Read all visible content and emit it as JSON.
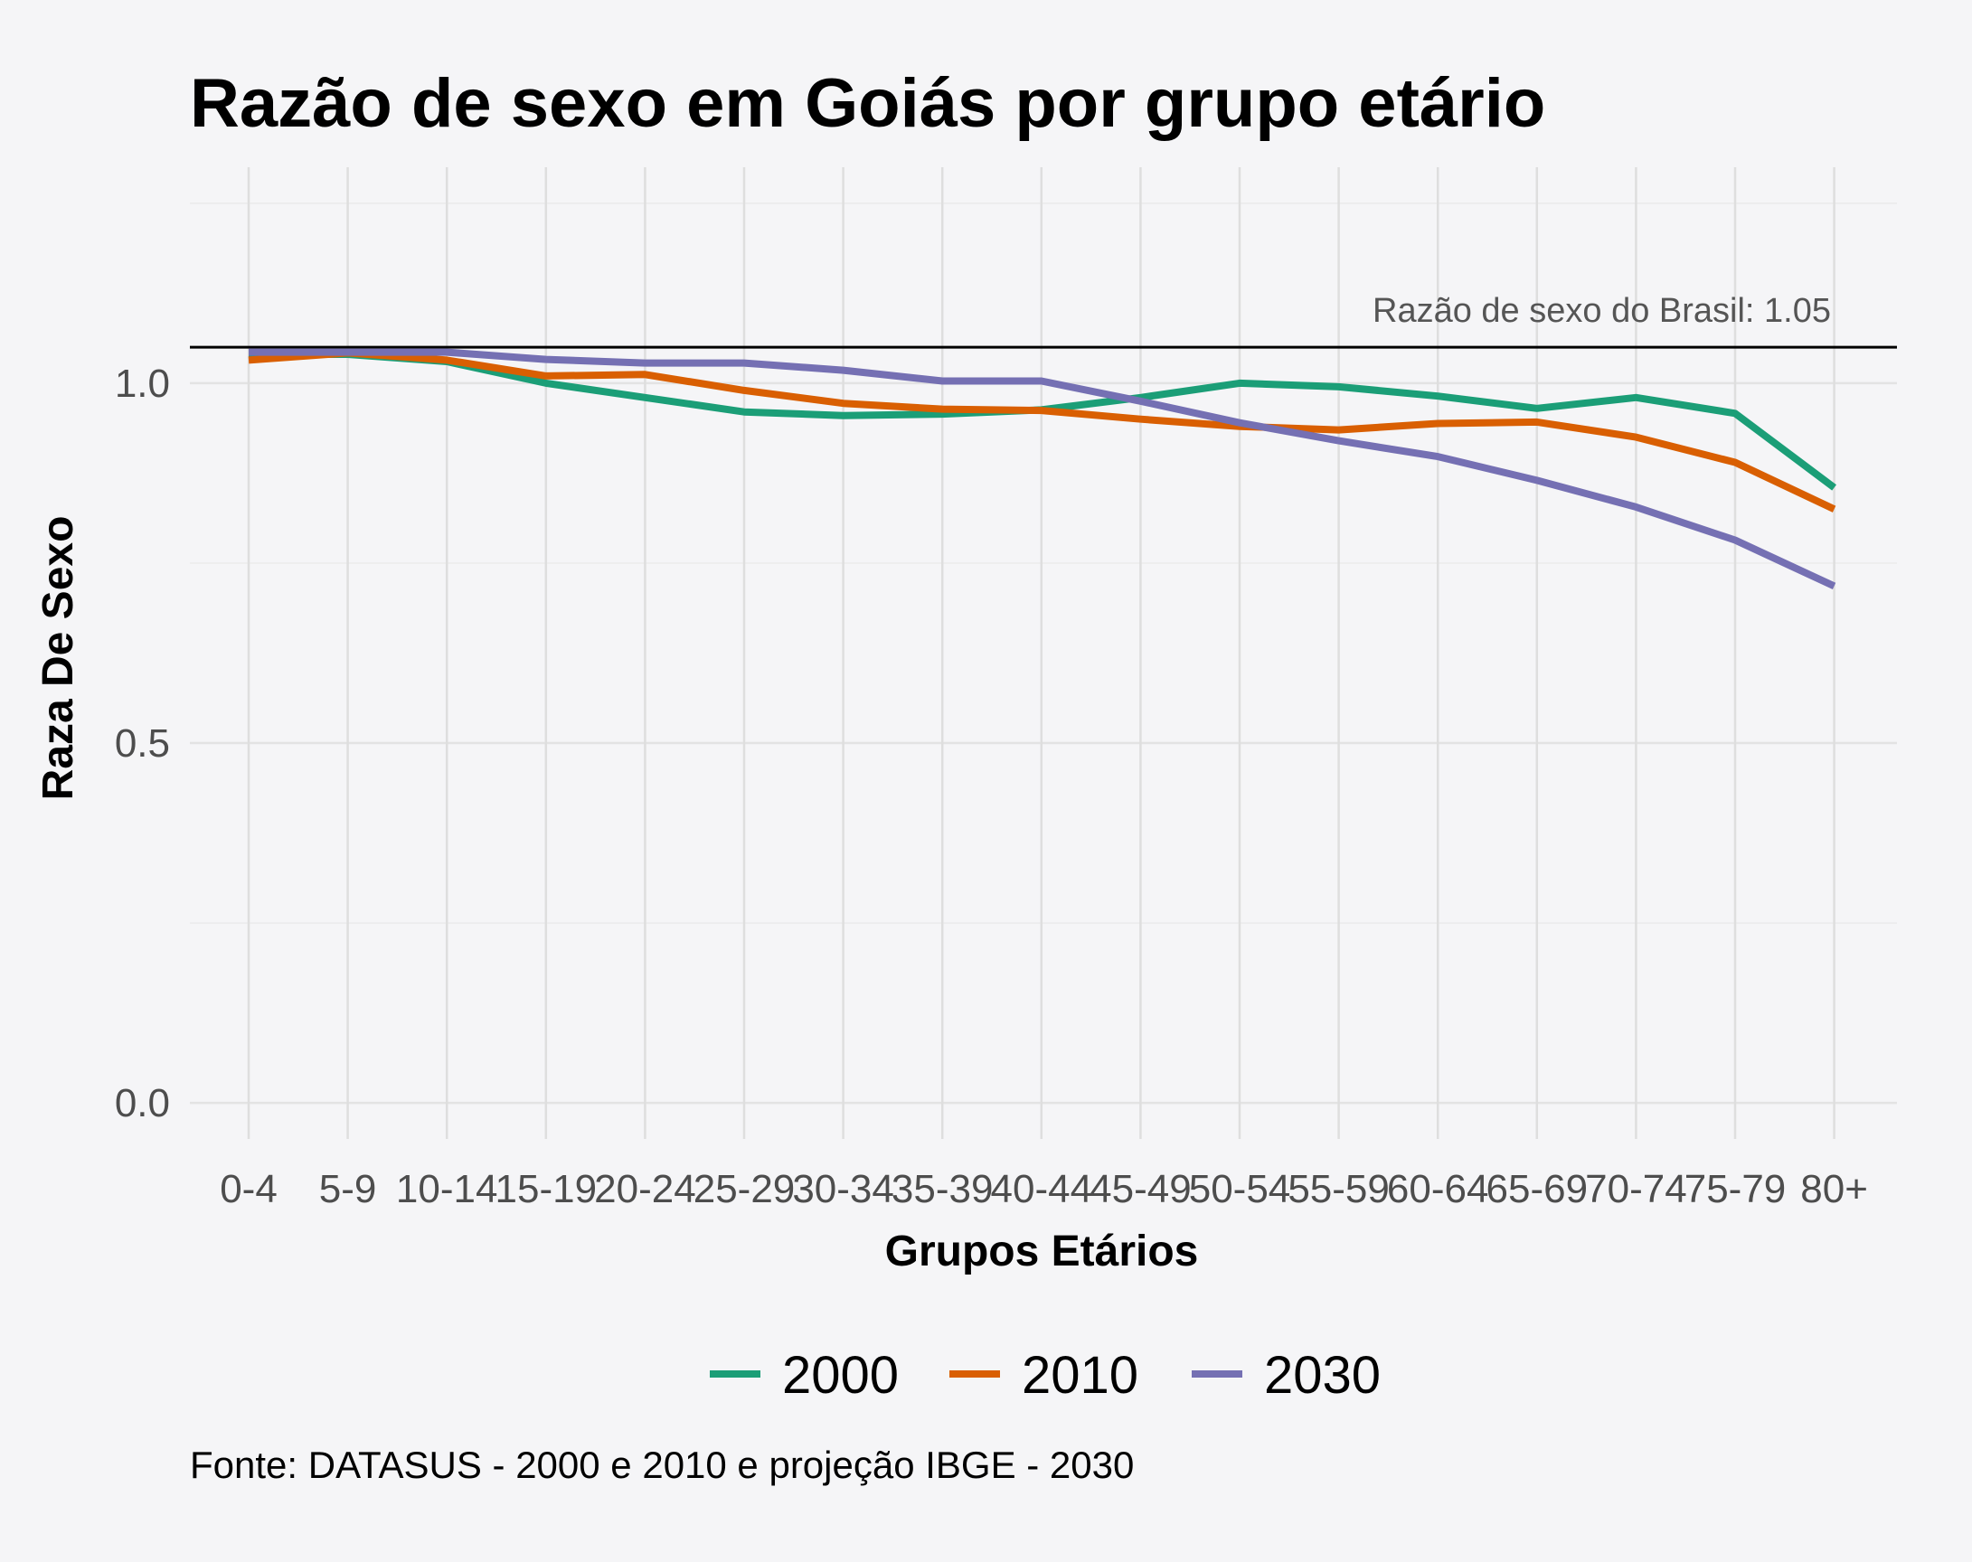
{
  "chart_data": {
    "type": "line",
    "title": "Razão de sexo em Goiás por grupo etário",
    "xlabel": "Grupos Etários",
    "ylabel": "Raza De Sexo",
    "categories": [
      "0-4",
      "5-9",
      "10-14",
      "15-19",
      "20-24",
      "25-29",
      "30-34",
      "35-39",
      "40-44",
      "45-49",
      "50-54",
      "55-59",
      "60-64",
      "65-69",
      "70-74",
      "75-79",
      "80+"
    ],
    "ylim": [
      -0.05,
      1.3
    ],
    "yticks": [
      0.0,
      0.5,
      1.0
    ],
    "ytick_labels": [
      "0.0",
      "0.5",
      "1.0"
    ],
    "grid": true,
    "legend_position": "bottom",
    "series": [
      {
        "name": "2000",
        "color": "#1b9e77",
        "values": [
          1.04,
          1.04,
          1.03,
          1.0,
          0.98,
          0.96,
          0.955,
          0.957,
          0.963,
          0.98,
          1.0,
          0.995,
          0.982,
          0.965,
          0.98,
          0.958,
          0.855
        ]
      },
      {
        "name": "2010",
        "color": "#d95f02",
        "values": [
          1.032,
          1.042,
          1.032,
          1.01,
          1.012,
          0.99,
          0.972,
          0.964,
          0.962,
          0.95,
          0.94,
          0.935,
          0.944,
          0.946,
          0.925,
          0.89,
          0.825
        ]
      },
      {
        "name": "2030",
        "color": "#7570b3",
        "values": [
          1.043,
          1.043,
          1.043,
          1.033,
          1.028,
          1.028,
          1.018,
          1.003,
          1.003,
          0.975,
          0.945,
          0.92,
          0.898,
          0.865,
          0.828,
          0.782,
          0.718
        ]
      }
    ],
    "reference_line": {
      "value": 1.05,
      "label": "Razão de sexo do Brasil: 1.05",
      "color": "#000000"
    },
    "caption": "Fonte: DATASUS - 2000 e 2010 e projeção IBGE - 2030"
  }
}
